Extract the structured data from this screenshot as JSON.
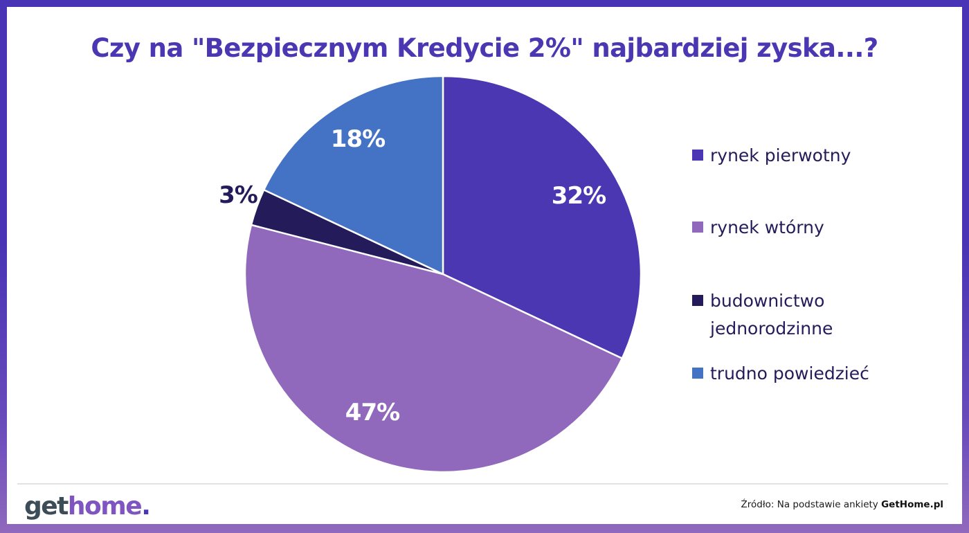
{
  "title": "Czy na \"Bezpiecznym Kredycie 2%\" najbardziej zyska...?",
  "chart_data": {
    "type": "pie",
    "title": "Czy na \"Bezpiecznym Kredycie 2%\" najbardziej zyska...?",
    "categories": [
      "rynek pierwotny",
      "rynek wtórny",
      "budownictwo jednorodzinne",
      "trudno powiedzieć"
    ],
    "values": [
      32,
      47,
      3,
      18
    ],
    "unit": "%",
    "colors": [
      "#4a37b1",
      "#9069bd",
      "#241c5a",
      "#4472c4"
    ],
    "data_labels": [
      "32%",
      "47%",
      "3%",
      "18%"
    ],
    "start_angle": "12 o'clock",
    "direction": "clockwise",
    "legend_position": "right"
  },
  "pie": {
    "labels": {
      "rynek_pierwotny": "32%",
      "rynek_wtorny": "47%",
      "budownictwo": "3%",
      "trudno": "18%"
    }
  },
  "legend": {
    "items": [
      {
        "label": "rynek pierwotny",
        "color": "#4a37b1"
      },
      {
        "label": "rynek wtórny",
        "color": "#9069bd"
      },
      {
        "label": "budownictwo jednorodzinne",
        "color": "#241c5a"
      },
      {
        "label": "trudno powiedzieć",
        "color": "#4472c4"
      }
    ]
  },
  "footer": {
    "logo": {
      "part1": "get",
      "part2": "home",
      "part3": "."
    },
    "source_prefix": "Źródło: Na podstawie ankiety ",
    "source_brand": "GetHome.pl"
  },
  "colors": {
    "accent": "#4a37b1",
    "frame_top": "#4834b4",
    "frame_bottom": "#9069bd",
    "text_dark": "#241c5a"
  }
}
